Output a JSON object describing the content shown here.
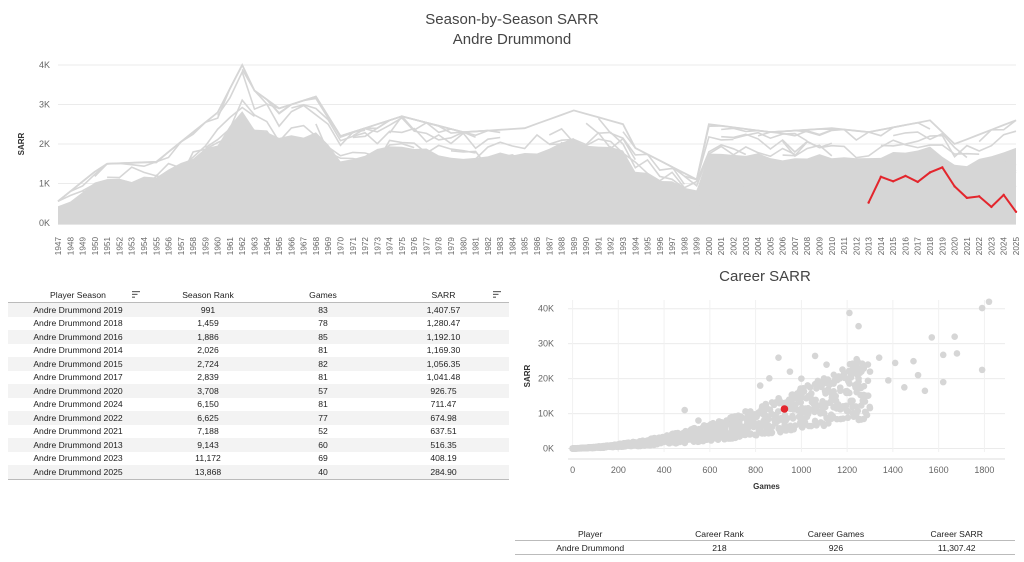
{
  "header": {
    "title": "Season-by-Season SARR",
    "subtitle": "Andre Drummond"
  },
  "season_table": {
    "columns": [
      "Player Season",
      "Season Rank",
      "Games",
      "SARR"
    ],
    "rows": [
      [
        "Andre Drummond 2019",
        "991",
        "83",
        "1,407.57"
      ],
      [
        "Andre Drummond 2018",
        "1,459",
        "78",
        "1,280.47"
      ],
      [
        "Andre Drummond 2016",
        "1,886",
        "85",
        "1,192.10"
      ],
      [
        "Andre Drummond 2014",
        "2,026",
        "81",
        "1,169.30"
      ],
      [
        "Andre Drummond 2015",
        "2,724",
        "82",
        "1,056.35"
      ],
      [
        "Andre Drummond 2017",
        "2,839",
        "81",
        "1,041.48"
      ],
      [
        "Andre Drummond 2020",
        "3,708",
        "57",
        "926.75"
      ],
      [
        "Andre Drummond 2024",
        "6,150",
        "81",
        "711.47"
      ],
      [
        "Andre Drummond 2022",
        "6,625",
        "77",
        "674.98"
      ],
      [
        "Andre Drummond 2021",
        "7,188",
        "52",
        "637.51"
      ],
      [
        "Andre Drummond 2013",
        "9,143",
        "60",
        "516.35"
      ],
      [
        "Andre Drummond 2023",
        "11,172",
        "69",
        "408.19"
      ],
      [
        "Andre Drummond 2025",
        "13,868",
        "40",
        "284.90"
      ]
    ]
  },
  "career_table": {
    "columns": [
      "Player",
      "Career Rank",
      "Career Games",
      "Career SARR"
    ],
    "rows": [
      [
        "Andre Drummond",
        "218",
        "926",
        "11,307.42"
      ]
    ]
  },
  "chart_data": [
    {
      "type": "line",
      "title": "Season-by-Season SARR",
      "subtitle": "Andre Drummond",
      "xlabel": "",
      "ylabel": "SARR",
      "x_categories": [
        "1947",
        "1948",
        "1949",
        "1950",
        "1951",
        "1952",
        "1953",
        "1954",
        "1955",
        "1956",
        "1957",
        "1958",
        "1959",
        "1960",
        "1961",
        "1962",
        "1963",
        "1964",
        "1965",
        "1966",
        "1967",
        "1968",
        "1969",
        "1970",
        "1971",
        "1972",
        "1973",
        "1974",
        "1975",
        "1976",
        "1977",
        "1978",
        "1979",
        "1980",
        "1981",
        "1982",
        "1983",
        "1984",
        "1985",
        "1986",
        "1987",
        "1988",
        "1989",
        "1990",
        "1991",
        "1992",
        "1993",
        "1994",
        "1995",
        "1996",
        "1997",
        "1998",
        "1999",
        "2000",
        "2001",
        "2002",
        "2003",
        "2004",
        "2005",
        "2006",
        "2007",
        "2008",
        "2009",
        "2010",
        "2011",
        "2012",
        "2013",
        "2014",
        "2015",
        "2016",
        "2017",
        "2018",
        "2019",
        "2020",
        "2021",
        "2022",
        "2023",
        "2024",
        "2025"
      ],
      "yticks": [
        "0K",
        "1K",
        "2K",
        "3K",
        "4K"
      ],
      "ylim": [
        -100,
        4100
      ],
      "highlight_color": "#e3262d",
      "background_color": "#d6d6d6",
      "series": [
        {
          "x": [
            "2013",
            "2014",
            "2015",
            "2016",
            "2017",
            "2018",
            "2019",
            "2020",
            "2021",
            "2022",
            "2023",
            "2024",
            "2025"
          ],
          "values": [
            516.35,
            1169.3,
            1056.35,
            1192.1,
            1041.48,
            1280.47,
            1407.57,
            926.75,
            637.51,
            674.98,
            408.19,
            711.47,
            284.9
          ]
        }
      ],
      "background_envelope": {
        "x": [
          "1947",
          "1950",
          "1951",
          "1955",
          "1960",
          "1962",
          "1963",
          "1965",
          "1968",
          "1970",
          "1975",
          "1980",
          "1985",
          "1989",
          "1993",
          "1994",
          "1999",
          "2000",
          "2005",
          "2010",
          "2013",
          "2018",
          "2020",
          "2025"
        ],
        "upper": [
          550,
          1300,
          1500,
          1550,
          2800,
          4000,
          3350,
          2900,
          3200,
          2200,
          2700,
          2300,
          2400,
          2850,
          2500,
          1900,
          1100,
          2500,
          2300,
          2400,
          2300,
          2600,
          2000,
          2600
        ]
      },
      "grid": true
    },
    {
      "type": "scatter",
      "title": "Career SARR",
      "xlabel": "Games",
      "ylabel": "SARR",
      "xticks": [
        0,
        200,
        400,
        600,
        800,
        1000,
        1200,
        1400,
        1600,
        1800
      ],
      "yticks": [
        "0K",
        "10K",
        "20K",
        "30K",
        "40K"
      ],
      "xlim": [
        -20,
        1890
      ],
      "ylim": [
        -1000,
        42500
      ],
      "highlight_color": "#e3262d",
      "point_color": "#d6d6d6",
      "highlight": {
        "x": 926,
        "y": 11307.42
      },
      "outliers": [
        {
          "x": 1820,
          "y": 42000
        },
        {
          "x": 1790,
          "y": 40200
        },
        {
          "x": 1790,
          "y": 22500
        },
        {
          "x": 1210,
          "y": 38800
        },
        {
          "x": 1250,
          "y": 35000
        },
        {
          "x": 1570,
          "y": 31800
        },
        {
          "x": 1670,
          "y": 32000
        },
        {
          "x": 1680,
          "y": 27200
        },
        {
          "x": 1620,
          "y": 26800
        },
        {
          "x": 1340,
          "y": 26000
        },
        {
          "x": 1410,
          "y": 24500
        },
        {
          "x": 1490,
          "y": 25000
        },
        {
          "x": 1510,
          "y": 21000
        },
        {
          "x": 1620,
          "y": 19000
        },
        {
          "x": 1540,
          "y": 16500
        },
        {
          "x": 1380,
          "y": 19500
        },
        {
          "x": 1110,
          "y": 24000
        },
        {
          "x": 950,
          "y": 22000
        },
        {
          "x": 1000,
          "y": 20000
        },
        {
          "x": 860,
          "y": 20100
        },
        {
          "x": 820,
          "y": 18000
        },
        {
          "x": 490,
          "y": 11000
        },
        {
          "x": 550,
          "y": 8000
        },
        {
          "x": 1300,
          "y": 22000
        },
        {
          "x": 1450,
          "y": 17500
        },
        {
          "x": 1150,
          "y": 15000
        },
        {
          "x": 1250,
          "y": 20000
        },
        {
          "x": 1060,
          "y": 26500
        },
        {
          "x": 900,
          "y": 26000
        }
      ]
    }
  ]
}
